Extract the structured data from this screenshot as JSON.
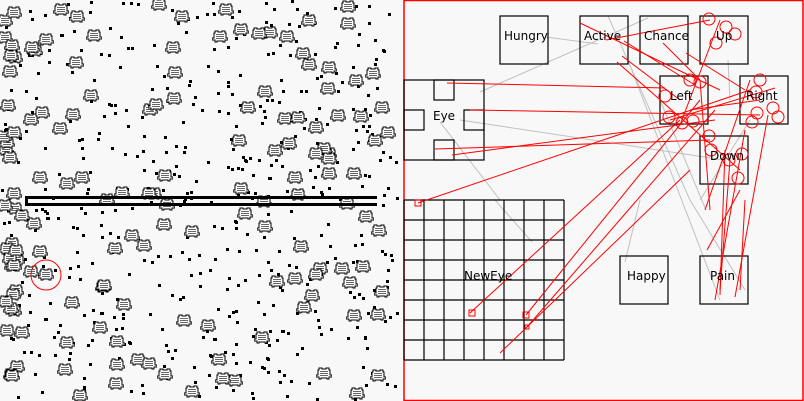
{
  "world": {
    "creature_count_hint": "many",
    "selected_marker_color": "#ff0000",
    "wall_color": "#000000"
  },
  "brain": {
    "border_color": "#ff0000",
    "excitatory_color": "#ff0000",
    "inhibitory_color": "#c0c0c0",
    "nodes": {
      "hungry": "Hungry",
      "active": "Active",
      "chance": "Chance",
      "up": "Up",
      "left": "Left",
      "right": "Right",
      "eye": "Eye",
      "down": "Down",
      "neweye": "NewEye",
      "happy": "Happy",
      "pain": "Pain"
    }
  }
}
